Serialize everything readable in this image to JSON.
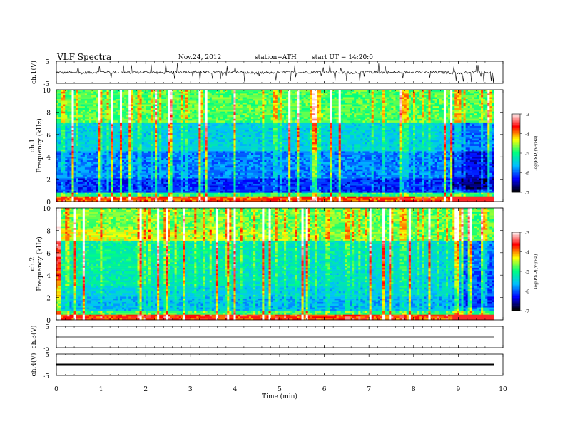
{
  "header": {
    "title": "VLF  Spectra",
    "date": "Nov.24, 2012",
    "station": "station=ATH",
    "start": "start  UT  =   14:20:0"
  },
  "colors": {
    "colormap": [
      "#000000",
      "#0000ff",
      "#00bfff",
      "#00ff80",
      "#ffff00",
      "#ff0000",
      "#ffffff"
    ],
    "background": "#ffffff",
    "axis": "#000000"
  },
  "chart_data": [
    {
      "type": "line",
      "panel": "ch1",
      "ylabel": "ch.1(V)",
      "ylim": [
        -5,
        5
      ],
      "yticks": [
        "5",
        "-5"
      ],
      "xlim": [
        0,
        10
      ],
      "x": [
        0,
        0.5,
        1,
        1.5,
        2,
        2.5,
        3,
        3.5,
        4,
        4.5,
        5,
        5.5,
        6,
        6.5,
        7,
        7.5,
        8,
        8.5,
        9,
        9.5,
        9.8
      ],
      "values": [
        0,
        -0.3,
        0.2,
        -0.1,
        0.1,
        -0.2,
        0.3,
        -0.1,
        0.2,
        -0.4,
        0.1,
        0,
        0.3,
        -0.2,
        0.1,
        -0.1,
        0.2,
        0,
        -0.3,
        0.1,
        0
      ]
    },
    {
      "type": "heatmap",
      "panel": "ch1-spectrogram",
      "side_label": "ch.1",
      "ylabel": "Frequency  (kHz)",
      "xlim": [
        0,
        10
      ],
      "ylim": [
        0,
        10
      ],
      "yticks": [
        "0",
        "2",
        "4",
        "6",
        "8",
        "10"
      ],
      "data_xlim": [
        0,
        9.8
      ],
      "colorbar": {
        "label": "log(PSD)(V²/Hz)",
        "range": [
          -7,
          -3
        ],
        "ticks": [
          "-3",
          "-4",
          "-5",
          "-6",
          "-7"
        ]
      }
    },
    {
      "type": "heatmap",
      "panel": "ch2-spectrogram",
      "side_label": "ch.2",
      "ylabel": "Frequency  (kHz)",
      "xlim": [
        0,
        10
      ],
      "ylim": [
        0,
        10
      ],
      "yticks": [
        "0",
        "2",
        "4",
        "6",
        "8",
        "10"
      ],
      "data_xlim": [
        0,
        9.8
      ],
      "colorbar": {
        "label": "log(PSD)(V²/Hz)",
        "range": [
          -7,
          -3
        ],
        "ticks": [
          "-3",
          "-4",
          "-5",
          "-6",
          "-7"
        ]
      }
    },
    {
      "type": "line",
      "panel": "ch3",
      "ylabel": "ch.3(V)",
      "ylim": [
        -5,
        5
      ],
      "yticks": [
        "5",
        "-5"
      ],
      "xlim": [
        0,
        10
      ],
      "x": [
        0,
        9.8
      ],
      "values": [
        0,
        0
      ]
    },
    {
      "type": "line",
      "panel": "ch4",
      "ylabel": "ch.4(V)",
      "ylim": [
        -5,
        5
      ],
      "yticks": [
        "5",
        "-5"
      ],
      "xlim": [
        0,
        10
      ],
      "x": [
        0,
        9.8
      ],
      "values": [
        0,
        0
      ]
    }
  ],
  "xaxis": {
    "label": "Time  (min)",
    "ticks": [
      "0",
      "1",
      "2",
      "3",
      "4",
      "5",
      "6",
      "7",
      "8",
      "9",
      "10"
    ]
  }
}
